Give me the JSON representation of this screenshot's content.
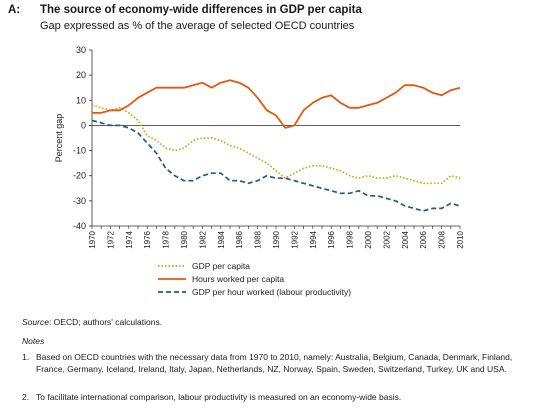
{
  "header": {
    "panel_label": "A:",
    "title": "The source of economy-wide differences in GDP per capita",
    "subtitle": "Gap expressed as % of the average of selected OECD countries"
  },
  "chart_data": {
    "type": "line",
    "ylabel": "Percent gap",
    "xlabel": "",
    "ylim": [
      -40,
      30
    ],
    "yticks": [
      30,
      20,
      10,
      0,
      -10,
      -20,
      -30,
      -40
    ],
    "xlim": [
      1970,
      2010
    ],
    "xticks": [
      "1970",
      "1972",
      "1974",
      "1976",
      "1978",
      "1980",
      "1982",
      "1984",
      "1986",
      "1988",
      "1990",
      "1992",
      "1994",
      "1996",
      "1998",
      "2000",
      "2002",
      "2004",
      "2006",
      "2008",
      "2010"
    ],
    "x": [
      1970,
      1971,
      1972,
      1973,
      1974,
      1975,
      1976,
      1977,
      1978,
      1979,
      1980,
      1981,
      1982,
      1983,
      1984,
      1985,
      1986,
      1987,
      1988,
      1989,
      1990,
      1991,
      1992,
      1993,
      1994,
      1995,
      1996,
      1997,
      1998,
      1999,
      2000,
      2001,
      2002,
      2003,
      2004,
      2005,
      2006,
      2007,
      2008,
      2009,
      2010
    ],
    "zero_line": true,
    "grid": false,
    "legend_position": "bottom",
    "series": [
      {
        "name": "GDP per capita",
        "color": "#c8a800",
        "style": "dotted",
        "values": [
          8,
          7,
          6,
          7,
          5,
          2,
          -4,
          -6,
          -9,
          -10,
          -9,
          -6,
          -5,
          -5,
          -6,
          -8,
          -9,
          -11,
          -13,
          -15,
          -18,
          -21,
          -19,
          -17,
          -16,
          -16,
          -17,
          -18,
          -20,
          -21,
          -20,
          -21,
          -21,
          -20,
          -21,
          -22,
          -23,
          -23,
          -23,
          -20,
          -21
        ]
      },
      {
        "name": "Hours worked per capita",
        "color": "#e05a10",
        "style": "solid",
        "values": [
          5,
          5,
          6,
          6,
          8,
          11,
          13,
          15,
          15,
          15,
          15,
          16,
          17,
          15,
          17,
          18,
          17,
          15,
          11,
          6,
          4,
          -1,
          0,
          6,
          9,
          11,
          12,
          9,
          7,
          7,
          8,
          9,
          11,
          13,
          16,
          16,
          15,
          13,
          12,
          14,
          15
        ]
      },
      {
        "name": "GDP per hour worked (labour productivity)",
        "color": "#1f5b8c",
        "style": "dashed",
        "values": [
          2,
          1,
          0,
          0,
          -1,
          -3,
          -7,
          -11,
          -17,
          -20,
          -22,
          -22,
          -20,
          -19,
          -19,
          -22,
          -22,
          -23,
          -22,
          -20,
          -21,
          -21,
          -22,
          -23,
          -24,
          -25,
          -26,
          -27,
          -27,
          -26,
          -28,
          -28,
          -29,
          -30,
          -32,
          -33,
          -34,
          -33,
          -33,
          -31,
          -32
        ]
      }
    ]
  },
  "footer": {
    "source_label": "Source",
    "source_text": ":  OECD; authors' calculations.",
    "notes_title": "Notes",
    "notes": [
      {
        "num": "1.",
        "text": "Based on OECD countries with the necessary data from 1970 to 2010, namely: Australia, Belgium, Canada, Denmark, Finland, France, Germany, Iceland, Ireland, Italy, Japan, Netherlands, NZ, Norway, Spain, Sweden, Switzerland, Turkey, UK and USA."
      },
      {
        "num": "2.",
        "text": "To facilitate international comparison, labour productivity is measured on an economy-wide basis."
      }
    ]
  }
}
